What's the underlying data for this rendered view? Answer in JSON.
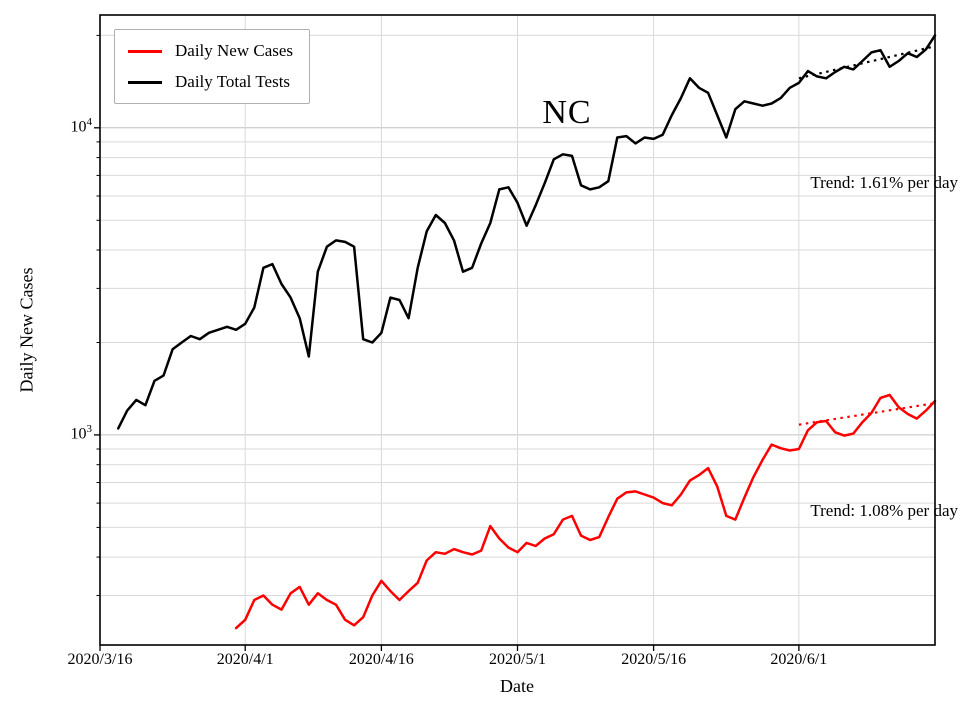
{
  "chart_data": {
    "type": "line",
    "title": "NC",
    "xlabel": "Date",
    "ylabel": "Daily New Cases",
    "yscale": "log",
    "grid": "both",
    "legend_position": "upper-left",
    "x_range": [
      "2020-03-16",
      "2020-06-16"
    ],
    "ylim": [
      207,
      23300
    ],
    "x_ticks": [
      {
        "date": "2020-03-16",
        "label": "2020/3/16"
      },
      {
        "date": "2020-04-01",
        "label": "2020/4/1"
      },
      {
        "date": "2020-04-16",
        "label": "2020/4/16"
      },
      {
        "date": "2020-05-01",
        "label": "2020/5/1"
      },
      {
        "date": "2020-05-16",
        "label": "2020/5/16"
      },
      {
        "date": "2020-06-01",
        "label": "2020/6/1"
      }
    ],
    "y_ticks": [
      {
        "value": 1000,
        "base": "10",
        "exp": "3"
      },
      {
        "value": 10000,
        "base": "10",
        "exp": "4"
      }
    ],
    "series": [
      {
        "name": "Daily New Cases",
        "color": "#ff0000",
        "start_date": "2020-03-31",
        "values": [
          235,
          250,
          290,
          300,
          280,
          270,
          305,
          320,
          280,
          305,
          290,
          280,
          250,
          240,
          255,
          300,
          335,
          310,
          290,
          310,
          330,
          390,
          415,
          410,
          425,
          415,
          408,
          420,
          505,
          460,
          430,
          415,
          445,
          435,
          460,
          475,
          530,
          545,
          470,
          455,
          465,
          540,
          620,
          650,
          655,
          640,
          625,
          600,
          590,
          640,
          710,
          740,
          780,
          680,
          545,
          530,
          625,
          730,
          830,
          930,
          905,
          890,
          900,
          1035,
          1100,
          1110,
          1020,
          995,
          1010,
          1100,
          1180,
          1320,
          1350,
          1230,
          1170,
          1130,
          1200,
          1290
        ]
      },
      {
        "name": "Daily Total Tests",
        "color": "#000000",
        "start_date": "2020-03-18",
        "values": [
          1050,
          1200,
          1300,
          1250,
          1500,
          1560,
          1900,
          2000,
          2100,
          2050,
          2150,
          2200,
          2250,
          2200,
          2300,
          2600,
          3500,
          3600,
          3100,
          2800,
          2400,
          1800,
          3400,
          4100,
          4300,
          4250,
          4100,
          2050,
          2000,
          2150,
          2800,
          2750,
          2400,
          3500,
          4600,
          5200,
          4900,
          4300,
          3400,
          3500,
          4200,
          4900,
          6300,
          6400,
          5700,
          4800,
          5600,
          6600,
          7900,
          8200,
          8100,
          6500,
          6300,
          6400,
          6700,
          9300,
          9400,
          8900,
          9300,
          9200,
          9500,
          11000,
          12500,
          14500,
          13500,
          13000,
          11000,
          9300,
          11500,
          12200,
          12000,
          11800,
          12000,
          12500,
          13500,
          14000,
          15300,
          14700,
          14500,
          15200,
          15800,
          15500,
          16500,
          17600,
          17900,
          15800,
          16500,
          17500,
          17000,
          18000,
          20000
        ]
      }
    ],
    "trends": [
      {
        "label": "Trend: 1.61% per day",
        "series": "Daily Total Tests",
        "color": "#000000",
        "pct_per_day": 1.61,
        "start_date": "2020-06-01",
        "start_value": 14500
      },
      {
        "label": "Trend: 1.08% per day",
        "series": "Daily New Cases",
        "color": "#ff0000",
        "pct_per_day": 1.08,
        "start_date": "2020-06-01",
        "start_value": 1080
      }
    ]
  }
}
